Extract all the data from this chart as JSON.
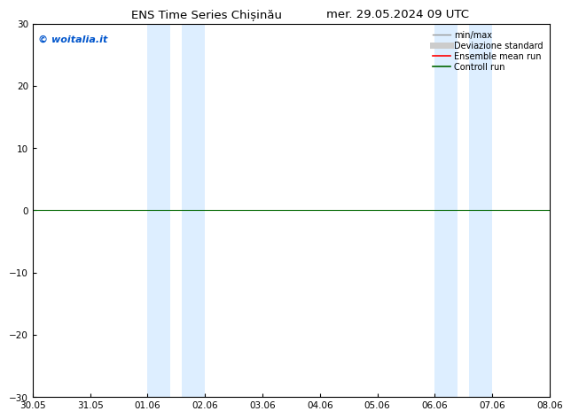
{
  "title": "ENS Time Series Chișinău",
  "title_right": "mer. 29.05.2024 09 UTC",
  "watermark": "© woitalia.it",
  "watermark_color": "#0055cc",
  "xlim_left": 0,
  "xlim_right": 9,
  "ylim": [
    -30,
    30
  ],
  "yticks": [
    -30,
    -20,
    -10,
    0,
    10,
    20,
    30
  ],
  "xtick_labels": [
    "30.05",
    "31.05",
    "01.06",
    "02.06",
    "03.06",
    "04.06",
    "05.06",
    "06.06",
    "07.06",
    "08.06"
  ],
  "xtick_positions": [
    0,
    1,
    2,
    3,
    4,
    5,
    6,
    7,
    8,
    9
  ],
  "shaded_bands": [
    [
      2.0,
      2.4
    ],
    [
      2.6,
      3.0
    ],
    [
      7.0,
      7.4
    ],
    [
      7.6,
      8.0
    ]
  ],
  "shade_color": "#ddeeff",
  "zero_line_y": 0,
  "zero_line_color": "#006600",
  "legend_items": [
    {
      "label": "min/max",
      "color": "#999999",
      "lw": 1.0
    },
    {
      "label": "Deviazione standard",
      "color": "#cccccc",
      "lw": 5.0
    },
    {
      "label": "Ensemble mean run",
      "color": "#ff0000",
      "lw": 1.2
    },
    {
      "label": "Controll run",
      "color": "#006600",
      "lw": 1.2
    }
  ],
  "bg_color": "#ffffff",
  "title_fontsize": 9.5,
  "tick_fontsize": 7.5,
  "watermark_fontsize": 8,
  "legend_fontsize": 7
}
